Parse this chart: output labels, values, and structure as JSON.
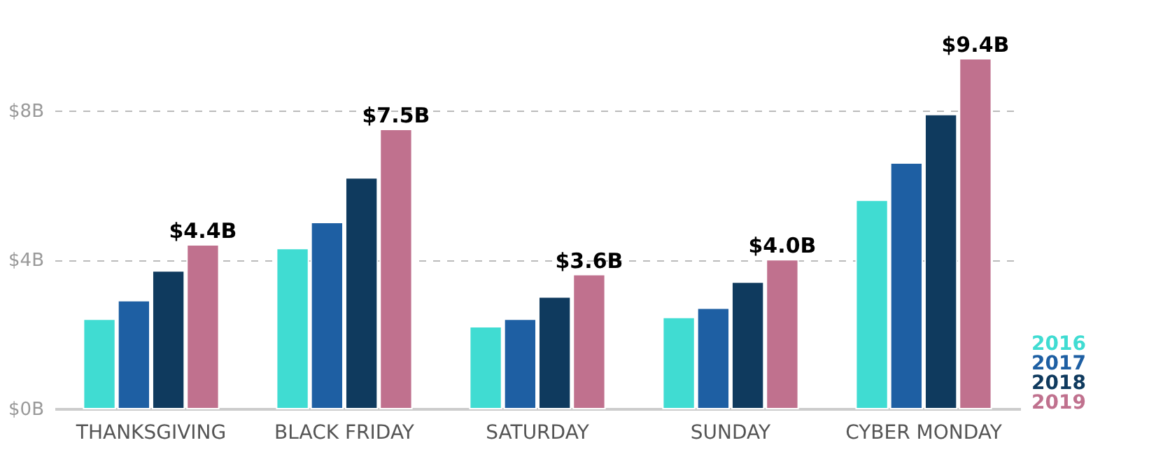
{
  "chart_data": {
    "type": "bar",
    "categories": [
      "THANKSGIVING",
      "BLACK FRIDAY",
      "SATURDAY",
      "SUNDAY",
      "CYBER MONDAY"
    ],
    "series": [
      {
        "name": "2016",
        "color": "#40dcd2",
        "values": [
          2.4,
          4.3,
          2.2,
          2.45,
          5.6
        ]
      },
      {
        "name": "2017",
        "color": "#1e5fa3",
        "values": [
          2.9,
          5.0,
          2.4,
          2.7,
          6.6
        ]
      },
      {
        "name": "2018",
        "color": "#0f3a5e",
        "values": [
          3.7,
          6.2,
          3.0,
          3.4,
          7.9
        ]
      },
      {
        "name": "2019",
        "color": "#c0718e",
        "values": [
          4.4,
          7.5,
          3.6,
          4.0,
          9.4
        ],
        "value_labels": [
          "$4.4B",
          "$7.5B",
          "$3.6B",
          "$4.0B",
          "$9.4B"
        ]
      }
    ],
    "ylim": [
      0,
      9.4
    ],
    "yticks": [
      {
        "value": 0,
        "label": "$0B"
      },
      {
        "value": 4,
        "label": "$4B"
      },
      {
        "value": 8,
        "label": "$8B"
      }
    ],
    "grid": "y",
    "legend": "bottom right"
  }
}
